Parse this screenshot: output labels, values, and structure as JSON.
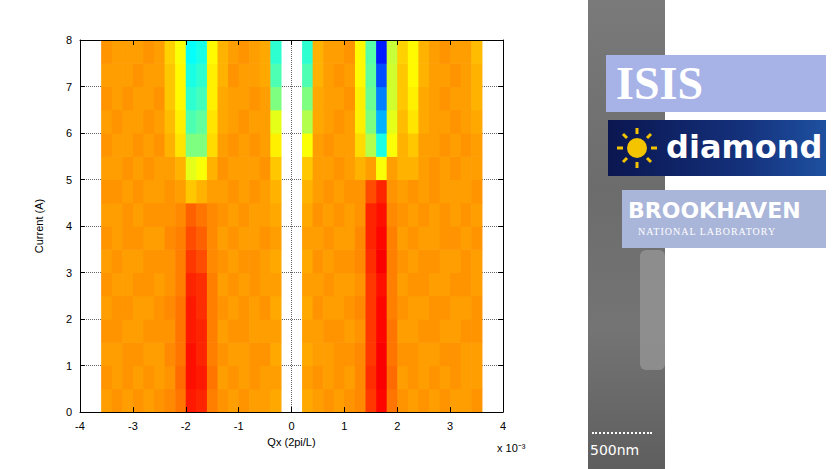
{
  "chart_data": {
    "type": "heatmap",
    "x_label": "Qx (2pi/L)",
    "y_label": "Current (A)",
    "x_multiplier": "x 10⁻³",
    "x": [
      -3.5,
      -3.3,
      -3.1,
      -2.9,
      -2.7,
      -2.5,
      -2.3,
      -2.1,
      -1.9,
      -1.7,
      -1.5,
      -1.3,
      -1.1,
      -0.9,
      -0.7,
      -0.5,
      -0.3,
      0.3,
      0.5,
      0.7,
      0.9,
      1.1,
      1.3,
      1.5,
      1.7,
      1.9,
      2.1,
      2.3,
      2.5,
      2.7,
      2.9,
      3.1,
      3.3,
      3.5
    ],
    "y": [
      0.25,
      0.75,
      1.25,
      1.75,
      2.25,
      2.75,
      3.25,
      3.75,
      4.25,
      4.75,
      5.25,
      5.75,
      6.25,
      6.75,
      7.25,
      7.75
    ],
    "z": [
      [
        0.72,
        0.73,
        0.72,
        0.73,
        0.72,
        0.73,
        0.74,
        0.76,
        0.85,
        0.84,
        0.75,
        0.73,
        0.72,
        0.73,
        0.72,
        0.72,
        0.71,
        0.71,
        0.72,
        0.73,
        0.72,
        0.73,
        0.74,
        0.82,
        0.87,
        0.76,
        0.73,
        0.72,
        0.73,
        0.72,
        0.73,
        0.72,
        0.72,
        0.73
      ],
      [
        0.73,
        0.72,
        0.73,
        0.72,
        0.73,
        0.72,
        0.73,
        0.77,
        0.86,
        0.85,
        0.76,
        0.72,
        0.73,
        0.72,
        0.73,
        0.72,
        0.72,
        0.72,
        0.73,
        0.72,
        0.73,
        0.72,
        0.74,
        0.83,
        0.88,
        0.77,
        0.72,
        0.73,
        0.72,
        0.73,
        0.72,
        0.73,
        0.72,
        0.72
      ],
      [
        0.72,
        0.72,
        0.73,
        0.73,
        0.72,
        0.72,
        0.74,
        0.76,
        0.86,
        0.84,
        0.75,
        0.73,
        0.72,
        0.72,
        0.73,
        0.73,
        0.71,
        0.71,
        0.72,
        0.72,
        0.73,
        0.73,
        0.74,
        0.82,
        0.88,
        0.76,
        0.73,
        0.73,
        0.72,
        0.72,
        0.73,
        0.73,
        0.72,
        0.72
      ],
      [
        0.73,
        0.73,
        0.72,
        0.72,
        0.73,
        0.73,
        0.73,
        0.76,
        0.85,
        0.84,
        0.75,
        0.72,
        0.73,
        0.73,
        0.72,
        0.72,
        0.72,
        0.72,
        0.72,
        0.73,
        0.73,
        0.72,
        0.73,
        0.82,
        0.87,
        0.76,
        0.72,
        0.72,
        0.73,
        0.73,
        0.72,
        0.72,
        0.73,
        0.73
      ],
      [
        0.72,
        0.73,
        0.73,
        0.72,
        0.72,
        0.73,
        0.74,
        0.76,
        0.85,
        0.83,
        0.75,
        0.73,
        0.72,
        0.73,
        0.72,
        0.73,
        0.71,
        0.71,
        0.73,
        0.72,
        0.72,
        0.73,
        0.74,
        0.82,
        0.87,
        0.75,
        0.73,
        0.72,
        0.72,
        0.73,
        0.73,
        0.72,
        0.72,
        0.73
      ],
      [
        0.73,
        0.72,
        0.72,
        0.73,
        0.73,
        0.72,
        0.73,
        0.75,
        0.84,
        0.83,
        0.75,
        0.72,
        0.73,
        0.72,
        0.73,
        0.72,
        0.72,
        0.72,
        0.72,
        0.73,
        0.72,
        0.72,
        0.73,
        0.82,
        0.86,
        0.75,
        0.72,
        0.73,
        0.73,
        0.72,
        0.72,
        0.73,
        0.73,
        0.72
      ],
      [
        0.72,
        0.73,
        0.72,
        0.72,
        0.73,
        0.73,
        0.73,
        0.75,
        0.82,
        0.8,
        0.74,
        0.73,
        0.72,
        0.73,
        0.73,
        0.72,
        0.71,
        0.71,
        0.73,
        0.72,
        0.73,
        0.73,
        0.74,
        0.83,
        0.88,
        0.75,
        0.73,
        0.72,
        0.73,
        0.73,
        0.72,
        0.72,
        0.73,
        0.72
      ],
      [
        0.73,
        0.72,
        0.73,
        0.73,
        0.72,
        0.72,
        0.74,
        0.75,
        0.8,
        0.78,
        0.74,
        0.72,
        0.73,
        0.72,
        0.72,
        0.73,
        0.72,
        0.72,
        0.72,
        0.73,
        0.72,
        0.72,
        0.74,
        0.84,
        0.87,
        0.75,
        0.72,
        0.73,
        0.72,
        0.72,
        0.73,
        0.73,
        0.72,
        0.73
      ],
      [
        0.72,
        0.72,
        0.73,
        0.72,
        0.73,
        0.73,
        0.73,
        0.74,
        0.78,
        0.76,
        0.74,
        0.73,
        0.72,
        0.73,
        0.72,
        0.72,
        0.71,
        0.71,
        0.73,
        0.72,
        0.73,
        0.72,
        0.73,
        0.84,
        0.86,
        0.74,
        0.73,
        0.72,
        0.73,
        0.72,
        0.73,
        0.72,
        0.73,
        0.72
      ],
      [
        0.73,
        0.73,
        0.72,
        0.73,
        0.72,
        0.72,
        0.73,
        0.72,
        0.68,
        0.7,
        0.72,
        0.72,
        0.73,
        0.72,
        0.73,
        0.72,
        0.7,
        0.7,
        0.72,
        0.73,
        0.72,
        0.73,
        0.73,
        0.8,
        0.84,
        0.73,
        0.72,
        0.73,
        0.72,
        0.73,
        0.72,
        0.72,
        0.72,
        0.73
      ],
      [
        0.72,
        0.72,
        0.73,
        0.72,
        0.73,
        0.72,
        0.72,
        0.7,
        0.6,
        0.62,
        0.7,
        0.73,
        0.72,
        0.72,
        0.72,
        0.73,
        0.68,
        0.68,
        0.72,
        0.72,
        0.73,
        0.72,
        0.7,
        0.72,
        0.62,
        0.72,
        0.7,
        0.7,
        0.72,
        0.73,
        0.72,
        0.73,
        0.72,
        0.72
      ],
      [
        0.73,
        0.72,
        0.72,
        0.73,
        0.72,
        0.73,
        0.7,
        0.65,
        0.5,
        0.5,
        0.66,
        0.72,
        0.73,
        0.72,
        0.73,
        0.72,
        0.64,
        0.62,
        0.72,
        0.73,
        0.72,
        0.72,
        0.66,
        0.55,
        0.4,
        0.62,
        0.7,
        0.68,
        0.72,
        0.72,
        0.73,
        0.72,
        0.73,
        0.72
      ],
      [
        0.72,
        0.73,
        0.72,
        0.72,
        0.73,
        0.72,
        0.69,
        0.64,
        0.45,
        0.47,
        0.65,
        0.71,
        0.72,
        0.73,
        0.72,
        0.72,
        0.6,
        0.55,
        0.71,
        0.72,
        0.73,
        0.72,
        0.64,
        0.5,
        0.3,
        0.6,
        0.69,
        0.65,
        0.71,
        0.72,
        0.72,
        0.73,
        0.72,
        0.71
      ],
      [
        0.73,
        0.72,
        0.73,
        0.72,
        0.72,
        0.73,
        0.68,
        0.63,
        0.42,
        0.44,
        0.64,
        0.71,
        0.72,
        0.72,
        0.73,
        0.72,
        0.5,
        0.5,
        0.71,
        0.72,
        0.72,
        0.73,
        0.64,
        0.48,
        0.25,
        0.58,
        0.68,
        0.64,
        0.71,
        0.72,
        0.73,
        0.72,
        0.72,
        0.7
      ],
      [
        0.72,
        0.72,
        0.72,
        0.73,
        0.72,
        0.72,
        0.68,
        0.63,
        0.4,
        0.42,
        0.64,
        0.7,
        0.73,
        0.72,
        0.72,
        0.71,
        0.45,
        0.45,
        0.7,
        0.72,
        0.73,
        0.72,
        0.63,
        0.47,
        0.2,
        0.58,
        0.68,
        0.63,
        0.7,
        0.72,
        0.72,
        0.73,
        0.72,
        0.7
      ],
      [
        0.73,
        0.72,
        0.72,
        0.72,
        0.73,
        0.72,
        0.67,
        0.62,
        0.38,
        0.4,
        0.63,
        0.7,
        0.72,
        0.73,
        0.72,
        0.71,
        0.42,
        0.42,
        0.7,
        0.72,
        0.72,
        0.73,
        0.63,
        0.46,
        0.15,
        0.57,
        0.67,
        0.63,
        0.7,
        0.72,
        0.73,
        0.72,
        0.72,
        0.69
      ]
    ],
    "zlim": [
      0,
      1
    ],
    "colors": [
      "#00007f",
      "#0000ff",
      "#007fff",
      "#00ffff",
      "#7fff7f",
      "#ffff00",
      "#ff7f00",
      "#ff0000",
      "#7f0000"
    ],
    "xlim": [
      -4,
      4
    ],
    "xticks": [
      -4,
      -3,
      -2,
      -1,
      0,
      1,
      2,
      3,
      4
    ],
    "ylim": [
      0,
      8
    ],
    "yticks": [
      0,
      1,
      2,
      3,
      4,
      5,
      6,
      7,
      8
    ],
    "grid": true
  },
  "logos": {
    "isis": "ISIS",
    "diamond": "diamond",
    "brookhaven": [
      "BROOKHAVEN",
      "NATIONAL LABORATORY"
    ]
  },
  "micrograph": {
    "scale_bar": "500nm"
  }
}
